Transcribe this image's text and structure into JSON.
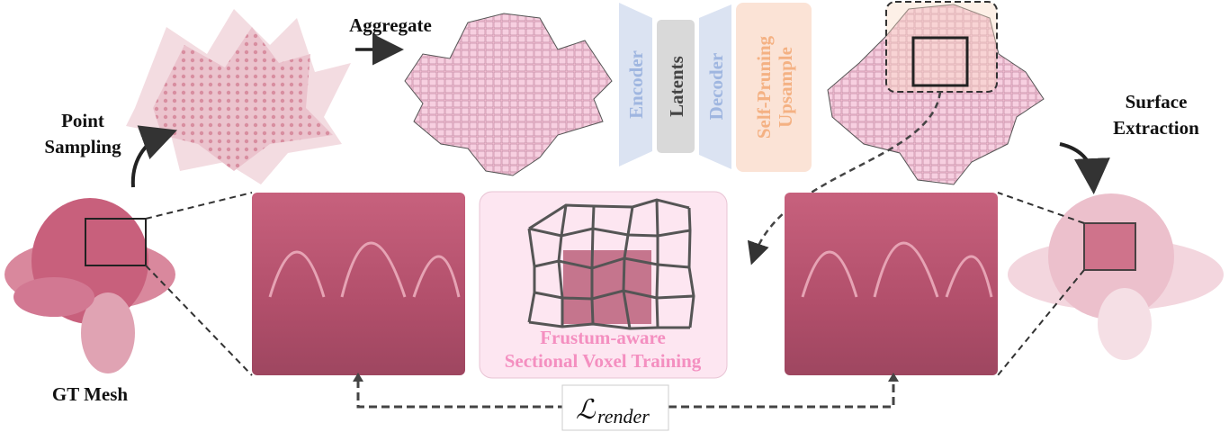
{
  "labels": {
    "point_sampling_1": "Point",
    "point_sampling_2": "Sampling",
    "aggregate": "Aggregate",
    "gt_mesh": "GT Mesh",
    "surface_extraction_1": "Surface",
    "surface_extraction_2": "Extraction"
  },
  "network": {
    "encoder": "Encoder",
    "latents": "Latents",
    "decoder": "Decoder",
    "upsample_1": "Self-Pruning",
    "upsample_2": "Upsample"
  },
  "frustum": {
    "line1": "Frustum-aware",
    "line2": "Sectional Voxel Training"
  },
  "loss": {
    "symbol": "ℒ",
    "subscript": "render"
  },
  "colors": {
    "encoder_fill": "#dbe3f2",
    "encoder_text": "#9fb6e0",
    "latents_fill": "#d9d9d9",
    "latents_text": "#444444",
    "upsample_fill": "#fbe3d6",
    "upsample_text": "#f4b183",
    "frustum_fill": "#fde6f1",
    "frustum_text": "#f48fc0",
    "petal": "#c8607c",
    "voxel": "#f3b8cf"
  }
}
